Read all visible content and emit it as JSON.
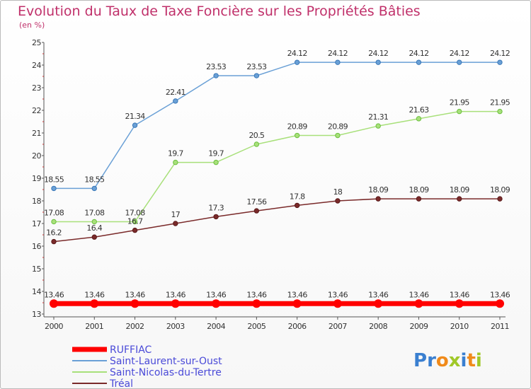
{
  "chart_data": {
    "type": "line",
    "title": "Evolution du Taux de Taxe Foncière sur les Propriétés Bâties",
    "ylabel": "(en %)",
    "xlabel": "",
    "ylim": [
      13,
      25
    ],
    "yticks": [
      "13",
      "14",
      "15",
      "16",
      "17",
      "18",
      "19",
      "20",
      "21",
      "22",
      "23",
      "24",
      "25"
    ],
    "categories": [
      "2000",
      "2001",
      "2002",
      "2003",
      "2004",
      "2005",
      "2006",
      "2007",
      "2008",
      "2009",
      "2010",
      "2011"
    ],
    "series": [
      {
        "name": "RUFFIAC",
        "color": "#ff0000",
        "values": [
          13.46,
          13.46,
          13.46,
          13.46,
          13.46,
          13.46,
          13.46,
          13.46,
          13.46,
          13.46,
          13.46,
          13.46
        ],
        "labels": [
          "13.46",
          "13.46",
          "13.46",
          "13.46",
          "13.46",
          "13.46",
          "13.46",
          "13.46",
          "13.46",
          "13.46",
          "13.46",
          "13.46"
        ]
      },
      {
        "name": "Saint-Laurent-sur-Oust",
        "color": "#6aa0d6",
        "marker": "#3a78b8",
        "values": [
          18.55,
          18.55,
          21.34,
          22.41,
          23.53,
          23.53,
          24.12,
          24.12,
          24.12,
          24.12,
          24.12,
          24.12
        ],
        "labels": [
          "18.55",
          "18.55",
          "21.34",
          "22.41",
          "23.53",
          "23.53",
          "24.12",
          "24.12",
          "24.12",
          "24.12",
          "24.12",
          "24.12"
        ]
      },
      {
        "name": "Saint-Nicolas-du-Tertre",
        "color": "#a8e07a",
        "marker": "#6cc040",
        "values": [
          17.08,
          17.08,
          17.08,
          19.7,
          19.7,
          20.5,
          20.89,
          20.89,
          21.31,
          21.63,
          21.95,
          21.95
        ],
        "labels": [
          "17.08",
          "17.08",
          "17.08",
          "19.7",
          "19.7",
          "20.5",
          "20.89",
          "20.89",
          "21.31",
          "21.63",
          "21.95",
          "21.95"
        ]
      },
      {
        "name": "Tréal",
        "color": "#7a2a2a",
        "marker": "#5a1a1a",
        "values": [
          16.2,
          16.4,
          16.7,
          17,
          17.3,
          17.56,
          17.8,
          18,
          18.09,
          18.09,
          18.09,
          18.09
        ],
        "labels": [
          "16.2",
          "16.4",
          "16.7",
          "17",
          "17.3",
          "17.56",
          "17.8",
          "18",
          "18.09",
          "18.09",
          "18.09",
          "18.09"
        ]
      }
    ],
    "grid": false,
    "legend": "bottom-left"
  },
  "branding": {
    "logo_letters": [
      "P",
      "r",
      "o",
      "x",
      "i",
      "t",
      "i"
    ],
    "logo_colors": [
      "#3a7fd0",
      "#3a7fd0",
      "#f08a1a",
      "#a0c828",
      "#3a7fd0",
      "#f08a1a",
      "#a0c828"
    ]
  }
}
